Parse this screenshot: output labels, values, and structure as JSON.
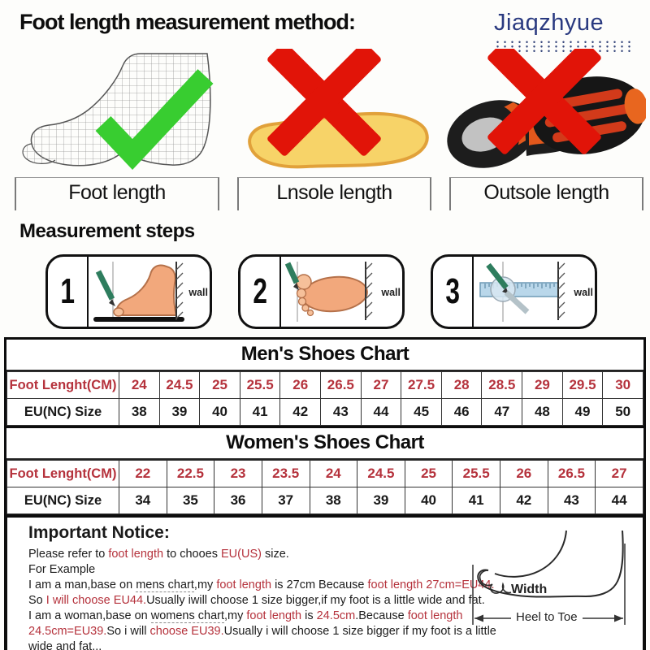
{
  "header": {
    "title": "Foot length measurement method:",
    "brand": "Jiaqzhyue"
  },
  "figures": [
    {
      "label": "Foot length"
    },
    {
      "label": "Lnsole length"
    },
    {
      "label": "Outsole length"
    }
  ],
  "steps": {
    "heading": "Measurement steps",
    "wall_label": "wall",
    "items": [
      {
        "num": "1"
      },
      {
        "num": "2"
      },
      {
        "num": "3"
      }
    ]
  },
  "charts": {
    "men": {
      "title": "Men's Shoes Chart",
      "foot_label": "Foot Lenght(CM)",
      "size_label": "EU(NC) Size",
      "foot_lengths": [
        "24",
        "24.5",
        "25",
        "25.5",
        "26",
        "26.5",
        "27",
        "27.5",
        "28",
        "28.5",
        "29",
        "29.5",
        "30"
      ],
      "eu_sizes": [
        "38",
        "39",
        "40",
        "41",
        "42",
        "43",
        "44",
        "45",
        "46",
        "47",
        "48",
        "49",
        "50"
      ]
    },
    "women": {
      "title": "Women's Shoes Chart",
      "foot_label": "Foot Lenght(CM)",
      "size_label": "EU(NC) Size",
      "foot_lengths": [
        "22",
        "22.5",
        "23",
        "23.5",
        "24",
        "24.5",
        "25",
        "25.5",
        "26",
        "26.5",
        "27"
      ],
      "eu_sizes": [
        "34",
        "35",
        "36",
        "37",
        "38",
        "39",
        "40",
        "41",
        "42",
        "43",
        "44"
      ]
    }
  },
  "notice": {
    "title": "Important Notice:",
    "lines": [
      [
        {
          "t": "Please refer to "
        },
        {
          "t": "foot length",
          "red": true
        },
        {
          "t": " to chooes "
        },
        {
          "t": "EU(US)",
          "red": true
        },
        {
          "t": " size."
        }
      ],
      [
        {
          "t": "For Example"
        }
      ],
      [
        {
          "t": "I am a man,base on "
        },
        {
          "t": "mens chart",
          "u": true
        },
        {
          "t": ",my "
        },
        {
          "t": "foot length",
          "red": true
        },
        {
          "t": " is 27cm Because "
        },
        {
          "t": "foot length 27cm=EU44.",
          "red": true
        }
      ],
      [
        {
          "t": "So "
        },
        {
          "t": "I will choose EU44.",
          "red": true
        },
        {
          "t": "Usually iwill choose 1 size bigger,if my foot is a little wide and fat."
        }
      ],
      [
        {
          "t": "I am a woman,base on "
        },
        {
          "t": "womens chart",
          "u": true
        },
        {
          "t": ",my "
        },
        {
          "t": "foot length",
          "red": true
        },
        {
          "t": " is "
        },
        {
          "t": "24.5cm",
          "red": true
        },
        {
          "t": ".Because "
        },
        {
          "t": "foot length",
          "red": true
        }
      ],
      [
        {
          "t": "24.5cm=EU39.",
          "red": true
        },
        {
          "t": "So i will "
        },
        {
          "t": "choose EU39.",
          "red": true
        },
        {
          "t": "Usually i will choose 1 size bigger if my foot is a little"
        }
      ],
      [
        {
          "t": "wide and fat..."
        }
      ]
    ],
    "diagram": {
      "width_label": "Width",
      "heel_label": "Heel to Toe"
    }
  },
  "colors": {
    "accent_red": "#b5323c",
    "brand_blue": "#2a3a80",
    "check_green": "#38cd30",
    "cross_red": "#e11408",
    "insole_yellow": "#f7d368",
    "pencil_green": "#2e7d5e",
    "ruler_blue": "#b9d7ea"
  }
}
